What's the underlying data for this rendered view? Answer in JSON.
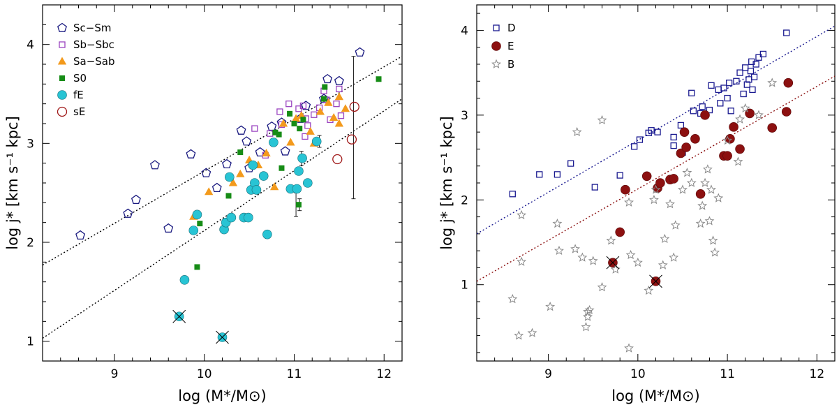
{
  "chart_data": [
    {
      "type": "scatter",
      "panel": "left",
      "xlabel": "log (M*/M⊙)",
      "ylabel": "log j* [km s⁻¹ kpc]",
      "xlim": [
        8.2,
        12.2
      ],
      "ylim": [
        0.8,
        4.4
      ],
      "xticks": [
        9,
        10,
        11,
        12
      ],
      "yticks": [
        1,
        2,
        3,
        4
      ],
      "legend_position": "top-left",
      "lines": [
        {
          "x": [
            8.2,
            12.2
          ],
          "y": [
            1.77,
            3.88
          ],
          "color": "#000000"
        },
        {
          "x": [
            8.2,
            12.2
          ],
          "y": [
            1.03,
            3.45
          ],
          "color": "#000000"
        }
      ],
      "series": [
        {
          "name": "Sc−Sm",
          "marker": "pentagon-open",
          "color": "#1a1a80",
          "points": [
            [
              8.62,
              2.07
            ],
            [
              9.15,
              2.29
            ],
            [
              9.24,
              2.43
            ],
            [
              9.45,
              2.78
            ],
            [
              9.6,
              2.14
            ],
            [
              9.85,
              2.89
            ],
            [
              10.02,
              2.7
            ],
            [
              10.14,
              2.55
            ],
            [
              10.25,
              2.79
            ],
            [
              10.41,
              3.13
            ],
            [
              10.47,
              3.02
            ],
            [
              10.5,
              2.75
            ],
            [
              10.62,
              2.91
            ],
            [
              10.75,
              3.17
            ],
            [
              10.86,
              3.21
            ],
            [
              10.9,
              2.92
            ],
            [
              11.07,
              3.25
            ],
            [
              11.13,
              3.38
            ],
            [
              11.33,
              3.45
            ],
            [
              11.37,
              3.65
            ],
            [
              11.5,
              3.63
            ],
            [
              11.73,
              3.92
            ]
          ]
        },
        {
          "name": "Sb−Sbc",
          "marker": "square-open",
          "color": "#9a44c0",
          "points": [
            [
              10.56,
              3.15
            ],
            [
              10.68,
              2.88
            ],
            [
              10.73,
              3.1
            ],
            [
              10.84,
              3.32
            ],
            [
              10.86,
              3.19
            ],
            [
              10.94,
              3.4
            ],
            [
              11.05,
              3.35
            ],
            [
              11.1,
              3.38
            ],
            [
              11.12,
              3.07
            ],
            [
              11.13,
              3.25
            ],
            [
              11.15,
              3.18
            ],
            [
              11.22,
              3.29
            ],
            [
              11.28,
              3.36
            ],
            [
              11.33,
              3.53
            ],
            [
              11.36,
              3.44
            ],
            [
              11.4,
              3.24
            ],
            [
              11.47,
              3.4
            ],
            [
              11.5,
              3.55
            ],
            [
              11.52,
              3.28
            ]
          ]
        },
        {
          "name": "Sa−Sab",
          "marker": "triangle",
          "color": "#f39a1c",
          "points": [
            [
              9.88,
              2.26
            ],
            [
              10.05,
              2.51
            ],
            [
              10.32,
              2.6
            ],
            [
              10.4,
              2.69
            ],
            [
              10.5,
              2.83
            ],
            [
              10.6,
              2.78
            ],
            [
              10.69,
              2.9
            ],
            [
              10.78,
              2.56
            ],
            [
              10.88,
              3.2
            ],
            [
              10.96,
              3.01
            ],
            [
              11.02,
              3.25
            ],
            [
              11.08,
              3.28
            ],
            [
              11.18,
              3.12
            ],
            [
              11.22,
              3.0
            ],
            [
              11.29,
              3.32
            ],
            [
              11.38,
              3.41
            ],
            [
              11.44,
              3.26
            ],
            [
              11.5,
              3.2
            ],
            [
              11.5,
              3.47
            ],
            [
              11.57,
              3.35
            ]
          ]
        },
        {
          "name": "S0",
          "marker": "square-filled",
          "color": "#168c16",
          "points": [
            [
              9.92,
              1.75
            ],
            [
              9.95,
              2.19
            ],
            [
              10.27,
              2.47
            ],
            [
              10.4,
              2.91
            ],
            [
              10.79,
              3.11
            ],
            [
              10.83,
              3.09
            ],
            [
              10.86,
              2.75
            ],
            [
              10.95,
              3.3
            ],
            [
              11.0,
              3.2
            ],
            [
              11.05,
              2.72
            ],
            [
              11.05,
              2.38
            ],
            [
              11.06,
              3.15
            ],
            [
              11.1,
              3.24
            ],
            [
              11.33,
              3.45
            ],
            [
              11.34,
              3.57
            ],
            [
              11.94,
              3.65
            ]
          ]
        },
        {
          "name": "fE",
          "marker": "circle-filled",
          "color": "#28c4d4",
          "points": [
            [
              9.72,
              1.25
            ],
            [
              9.78,
              1.62
            ],
            [
              9.88,
              2.12
            ],
            [
              9.92,
              2.28
            ],
            [
              10.2,
              1.04
            ],
            [
              10.22,
              2.13
            ],
            [
              10.24,
              2.2
            ],
            [
              10.3,
              2.25
            ],
            [
              10.28,
              2.66
            ],
            [
              10.44,
              2.25
            ],
            [
              10.49,
              2.25
            ],
            [
              10.52,
              2.53
            ],
            [
              10.54,
              2.78
            ],
            [
              10.56,
              2.6
            ],
            [
              10.58,
              2.53
            ],
            [
              10.66,
              2.67
            ],
            [
              10.7,
              2.08
            ],
            [
              10.77,
              3.01
            ],
            [
              10.96,
              2.54
            ],
            [
              11.03,
              2.54
            ],
            [
              11.05,
              2.72
            ],
            [
              11.09,
              2.85
            ],
            [
              11.15,
              2.6
            ],
            [
              11.25,
              3.02
            ]
          ]
        },
        {
          "name": "sE",
          "marker": "circle-open",
          "color": "#a01818",
          "points": [
            [
              11.48,
              2.84
            ],
            [
              11.64,
              3.04
            ],
            [
              11.67,
              3.37
            ]
          ]
        }
      ],
      "error_bars": [
        {
          "x": 11.66,
          "y_low": 2.44,
          "y_high": 3.88
        },
        {
          "x": 11.02,
          "y_low": 2.26,
          "y_high": 2.5
        },
        {
          "x": 11.06,
          "y_low": 2.32,
          "y_high": 2.44
        },
        {
          "x": 11.08,
          "y_low": 2.78,
          "y_high": 2.92
        },
        {
          "x": 11.28,
          "y_low": 2.96,
          "y_high": 3.08
        }
      ],
      "crossed_points": [
        [
          9.72,
          1.25
        ],
        [
          10.2,
          1.04
        ]
      ]
    },
    {
      "type": "scatter",
      "panel": "right",
      "xlabel": "log (M*/M⊙)",
      "ylabel": "log j* [km s⁻¹ kpc]",
      "xlim": [
        8.2,
        12.2
      ],
      "ylim": [
        0.1,
        4.3
      ],
      "xticks": [
        9,
        10,
        11,
        12
      ],
      "yticks": [
        1,
        2,
        3,
        4
      ],
      "legend_position": "top-left",
      "lines": [
        {
          "x": [
            8.2,
            12.2
          ],
          "y": [
            1.6,
            4.05
          ],
          "color": "#1a1a90"
        },
        {
          "x": [
            8.2,
            12.2
          ],
          "y": [
            1.04,
            3.46
          ],
          "color": "#8c1010"
        }
      ],
      "series": [
        {
          "name": "D",
          "marker": "square-open",
          "color": "#1a1a90",
          "points": [
            [
              8.6,
              2.07
            ],
            [
              8.9,
              2.3
            ],
            [
              9.1,
              2.3
            ],
            [
              9.25,
              2.43
            ],
            [
              9.52,
              2.15
            ],
            [
              9.8,
              2.29
            ],
            [
              9.96,
              2.63
            ],
            [
              10.02,
              2.71
            ],
            [
              10.12,
              2.79
            ],
            [
              10.15,
              2.82
            ],
            [
              10.22,
              2.8
            ],
            [
              10.4,
              2.64
            ],
            [
              10.4,
              2.74
            ],
            [
              10.48,
              2.88
            ],
            [
              10.5,
              2.56
            ],
            [
              10.6,
              3.26
            ],
            [
              10.62,
              3.05
            ],
            [
              10.7,
              3.02
            ],
            [
              10.72,
              3.1
            ],
            [
              10.8,
              3.06
            ],
            [
              10.82,
              3.35
            ],
            [
              10.9,
              3.3
            ],
            [
              10.92,
              3.14
            ],
            [
              10.96,
              3.32
            ],
            [
              11.0,
              3.2
            ],
            [
              11.02,
              3.38
            ],
            [
              11.04,
              3.05
            ],
            [
              11.1,
              3.4
            ],
            [
              11.14,
              3.5
            ],
            [
              11.18,
              3.25
            ],
            [
              11.2,
              3.56
            ],
            [
              11.24,
              3.42
            ],
            [
              11.26,
              3.52
            ],
            [
              11.28,
              3.3
            ],
            [
              11.3,
              3.45
            ],
            [
              11.32,
              3.6
            ],
            [
              11.35,
              3.68
            ],
            [
              11.4,
              3.72
            ],
            [
              11.22,
              3.36
            ],
            [
              11.27,
              3.63
            ],
            [
              11.66,
              3.97
            ]
          ]
        },
        {
          "name": "E",
          "marker": "circle-filled",
          "color": "#8c1010",
          "points": [
            [
              9.72,
              1.26
            ],
            [
              9.8,
              1.62
            ],
            [
              9.86,
              2.12
            ],
            [
              10.1,
              2.28
            ],
            [
              10.2,
              1.04
            ],
            [
              10.22,
              2.14
            ],
            [
              10.25,
              2.2
            ],
            [
              10.36,
              2.24
            ],
            [
              10.4,
              2.25
            ],
            [
              10.48,
              2.55
            ],
            [
              10.52,
              2.8
            ],
            [
              10.54,
              2.62
            ],
            [
              10.64,
              2.72
            ],
            [
              10.7,
              2.07
            ],
            [
              10.75,
              3.0
            ],
            [
              10.96,
              2.52
            ],
            [
              11.0,
              2.52
            ],
            [
              11.03,
              2.72
            ],
            [
              11.07,
              2.86
            ],
            [
              11.14,
              2.6
            ],
            [
              11.25,
              3.02
            ],
            [
              11.5,
              2.85
            ],
            [
              11.66,
              3.04
            ],
            [
              11.68,
              3.38
            ]
          ]
        },
        {
          "name": "B",
          "marker": "star-open",
          "color": "#888888",
          "points": [
            [
              8.6,
              0.83
            ],
            [
              8.67,
              0.4
            ],
            [
              8.7,
              1.27
            ],
            [
              8.7,
              1.82
            ],
            [
              8.82,
              0.43
            ],
            [
              9.02,
              0.74
            ],
            [
              9.1,
              1.72
            ],
            [
              9.12,
              1.4
            ],
            [
              9.3,
              1.42
            ],
            [
              9.38,
              1.32
            ],
            [
              9.42,
              0.5
            ],
            [
              9.44,
              0.62
            ],
            [
              9.44,
              0.68
            ],
            [
              9.46,
              0.7
            ],
            [
              9.5,
              1.28
            ],
            [
              9.6,
              0.97
            ],
            [
              9.7,
              1.52
            ],
            [
              9.75,
              1.18
            ],
            [
              9.9,
              1.97
            ],
            [
              9.92,
              1.35
            ],
            [
              10.0,
              1.26
            ],
            [
              10.12,
              0.93
            ],
            [
              10.18,
              2.0
            ],
            [
              10.2,
              2.12
            ],
            [
              10.28,
              1.23
            ],
            [
              10.3,
              1.54
            ],
            [
              10.36,
              1.95
            ],
            [
              10.4,
              1.32
            ],
            [
              10.42,
              1.7
            ],
            [
              10.5,
              2.12
            ],
            [
              10.55,
              2.32
            ],
            [
              10.6,
              2.2
            ],
            [
              10.7,
              1.72
            ],
            [
              10.72,
              1.93
            ],
            [
              10.75,
              2.2
            ],
            [
              10.78,
              2.36
            ],
            [
              10.8,
              1.75
            ],
            [
              10.82,
              2.12
            ],
            [
              10.84,
              1.52
            ],
            [
              10.86,
              1.38
            ],
            [
              10.9,
              2.02
            ],
            [
              11.0,
              2.7
            ],
            [
              11.12,
              2.45
            ],
            [
              11.14,
              2.95
            ],
            [
              11.2,
              3.08
            ],
            [
              11.35,
              3.0
            ],
            [
              11.5,
              3.38
            ],
            [
              9.6,
              2.94
            ],
            [
              9.32,
              2.8
            ],
            [
              9.9,
              0.25
            ]
          ]
        }
      ],
      "crossed_points": [
        [
          9.72,
          1.26
        ],
        [
          10.2,
          1.04
        ]
      ]
    }
  ]
}
